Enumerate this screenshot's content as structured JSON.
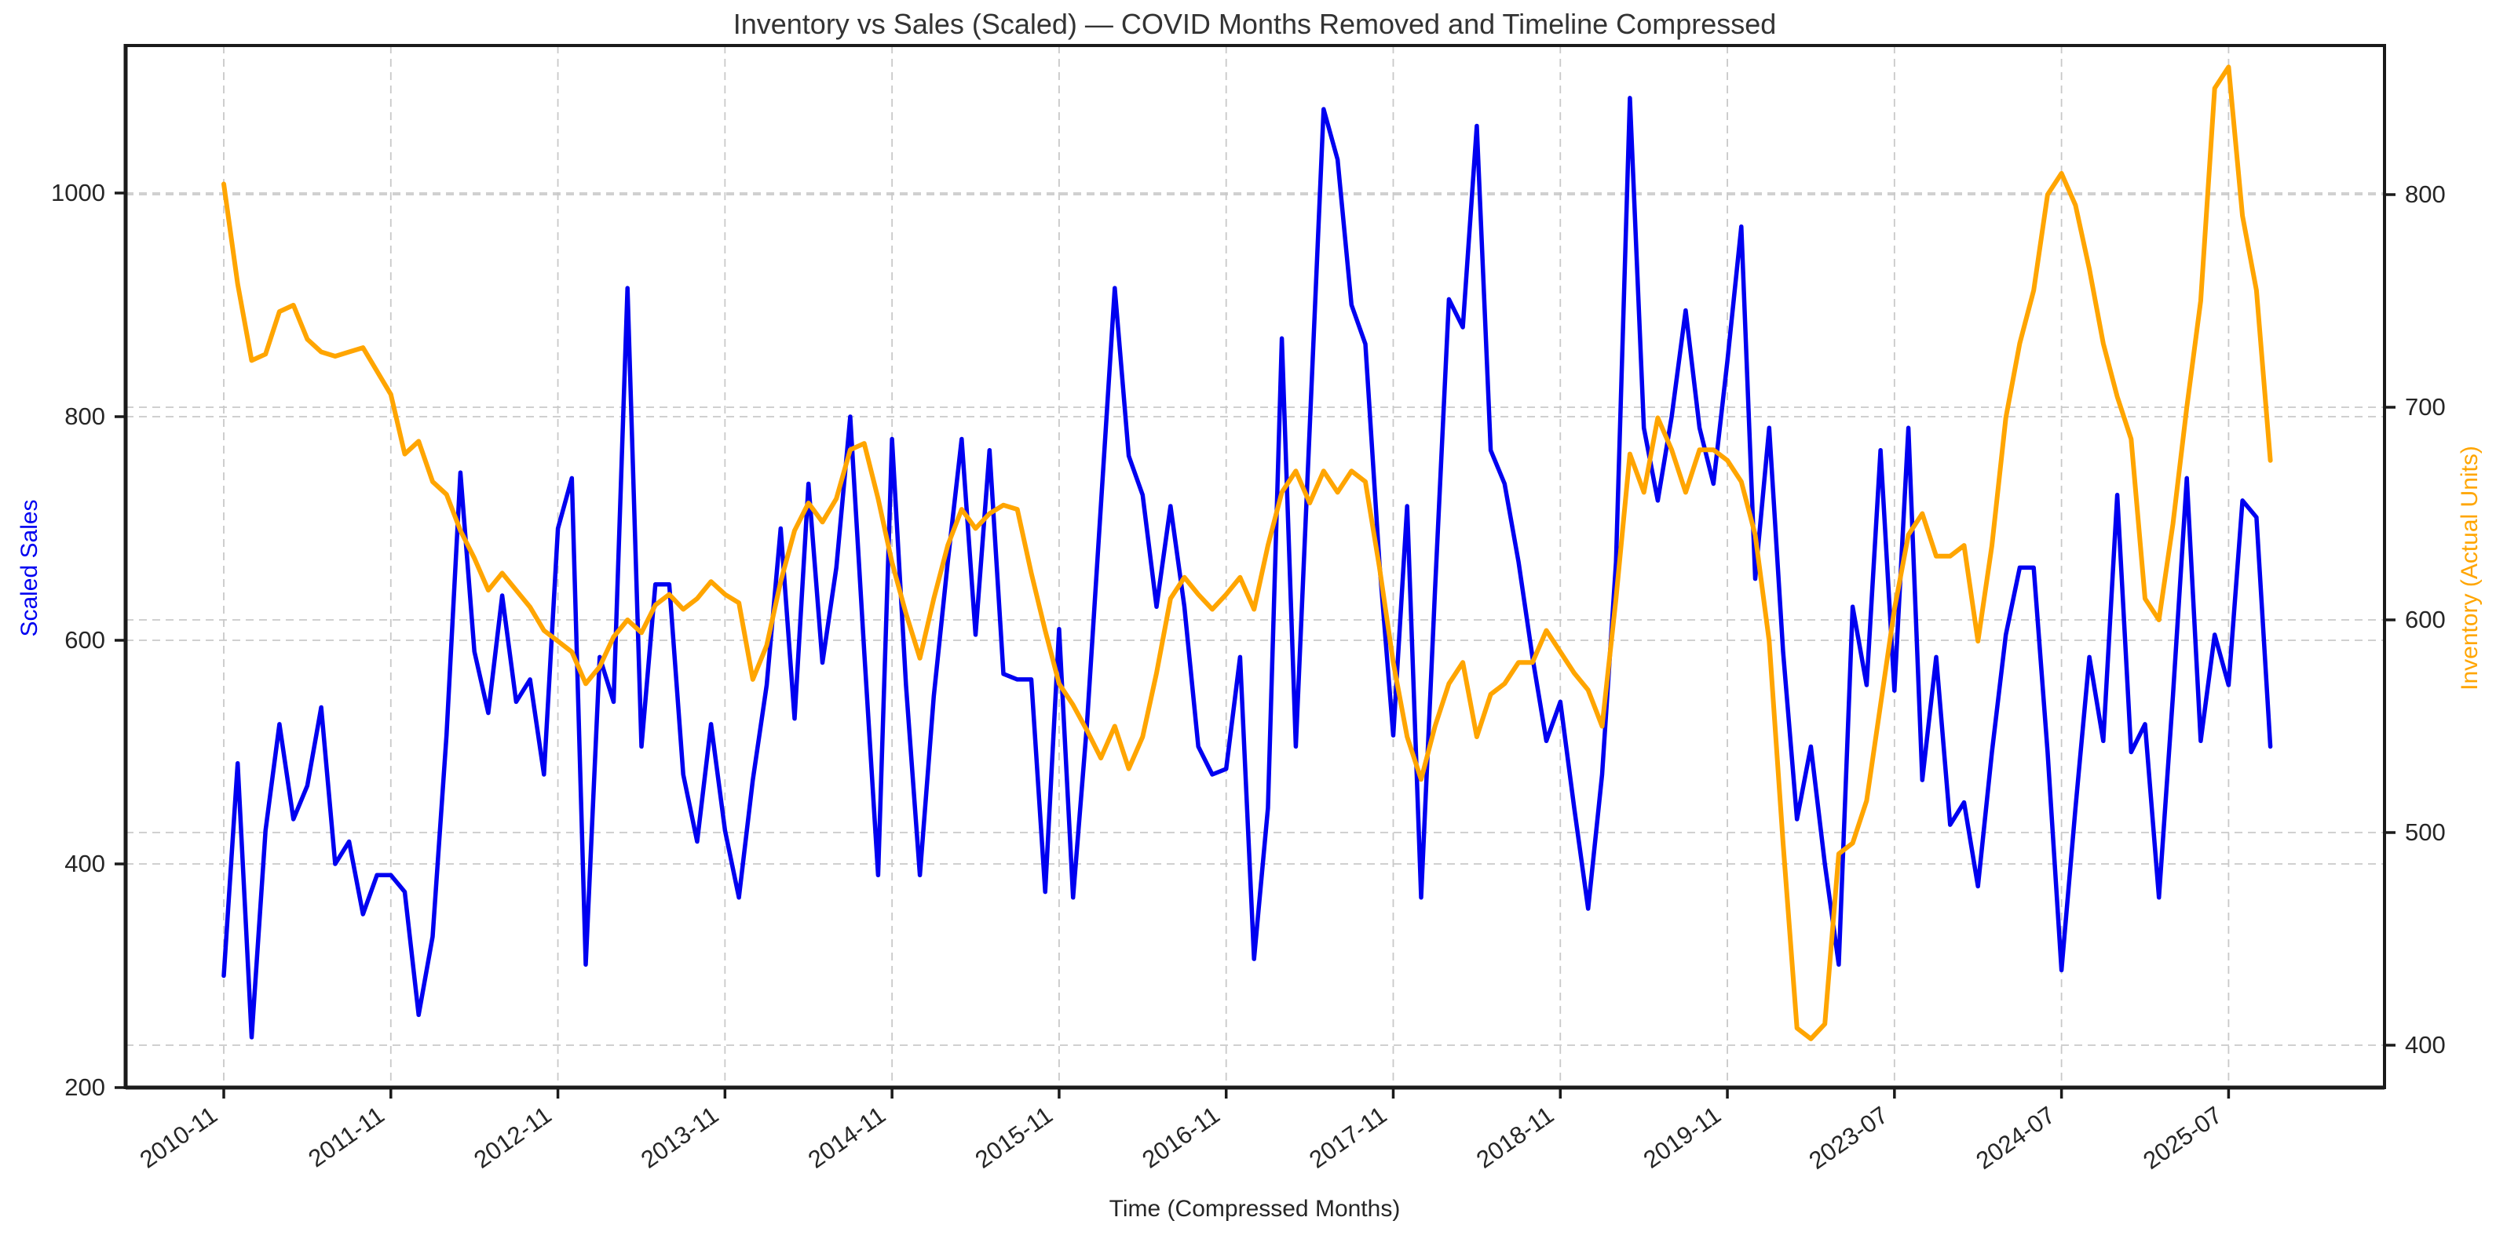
{
  "chart_data": {
    "type": "line",
    "title": "Inventory vs Sales (Scaled) — COVID Months Removed and Timeline Compressed",
    "x_axis": {
      "label": "Time (Compressed Months)",
      "tick_positions": [
        0,
        12,
        24,
        36,
        48,
        60,
        72,
        84,
        96,
        108,
        120,
        132,
        144
      ],
      "tick_labels": [
        "2010-11",
        "2011-11",
        "2012-11",
        "2013-11",
        "2014-11",
        "2015-11",
        "2016-11",
        "2017-11",
        "2018-11",
        "2019-11",
        "2023-07",
        "2024-07",
        "2025-07"
      ],
      "note": "x is compressed month index; COVID months removed",
      "grid": true
    },
    "y_axis_left": {
      "label": "Scaled Sales",
      "ticks": [
        200,
        400,
        600,
        800,
        1000
      ],
      "range": [
        200,
        1127
      ],
      "color": "#0000f0",
      "grid": true
    },
    "y_axis_right": {
      "label": "Inventory (Actual Units)",
      "ticks": [
        400,
        500,
        600,
        700,
        800
      ],
      "range": [
        380,
        868
      ],
      "color": "#ffa500",
      "grid": true
    },
    "series": [
      {
        "name": "Scaled Sales",
        "axis": "left",
        "color": "#0000f0",
        "line_width": 5.5,
        "values": [
          300,
          490,
          245,
          430,
          525,
          440,
          470,
          540,
          400,
          420,
          355,
          390,
          390,
          375,
          265,
          335,
          515,
          750,
          590,
          535,
          640,
          545,
          565,
          480,
          700,
          745,
          310,
          585,
          545,
          915,
          505,
          650,
          650,
          480,
          420,
          525,
          430,
          370,
          475,
          560,
          700,
          530,
          740,
          580,
          665,
          800,
          590,
          390,
          780,
          560,
          390,
          550,
          670,
          780,
          605,
          770,
          570,
          565,
          565,
          375,
          610,
          370,
          525,
          720,
          915,
          765,
          730,
          630,
          720,
          630,
          505,
          480,
          485,
          585,
          315,
          450,
          870,
          505,
          790,
          1075,
          1030,
          900,
          865,
          670,
          515,
          720,
          370,
          645,
          905,
          880,
          1060,
          770,
          740,
          670,
          585,
          510,
          545,
          450,
          360,
          480,
          670,
          1085,
          790,
          725,
          800,
          895,
          790,
          740,
          850,
          970,
          655,
          790,
          590,
          440,
          505,
          400,
          310,
          630,
          560,
          770,
          555,
          790,
          475,
          585,
          435,
          455,
          380,
          500,
          605,
          665,
          665,
          500,
          305,
          450,
          585,
          510,
          730,
          500,
          525,
          370,
          550,
          745,
          510,
          605,
          560,
          725,
          710,
          505
        ]
      },
      {
        "name": "Inventory (Actual Units)",
        "axis": "right",
        "color": "#ffa500",
        "line_width": 6,
        "values": [
          805,
          758,
          722,
          725,
          745,
          748,
          732,
          726,
          724,
          726,
          728,
          717,
          706,
          678,
          684,
          665,
          659,
          642,
          629,
          614,
          622,
          614,
          606,
          595,
          590,
          585,
          570,
          578,
          592,
          600,
          594,
          607,
          612,
          605,
          610,
          618,
          612,
          608,
          572,
          588,
          618,
          642,
          655,
          646,
          657,
          680,
          683,
          657,
          627,
          603,
          582,
          610,
          635,
          652,
          643,
          650,
          654,
          652,
          622,
          595,
          570,
          560,
          548,
          535,
          550,
          530,
          545,
          575,
          610,
          620,
          612,
          605,
          612,
          620,
          605,
          635,
          660,
          670,
          655,
          670,
          660,
          670,
          665,
          625,
          580,
          545,
          525,
          550,
          570,
          580,
          545,
          565,
          570,
          580,
          580,
          595,
          585,
          575,
          567,
          550,
          610,
          678,
          660,
          695,
          680,
          660,
          680,
          680,
          675,
          665,
          640,
          590,
          495,
          408,
          403,
          410,
          490,
          495,
          515,
          560,
          605,
          640,
          650,
          630,
          630,
          635,
          590,
          635,
          695,
          730,
          755,
          800,
          810,
          795,
          765,
          730,
          705,
          685,
          610,
          600,
          645,
          700,
          750,
          850,
          860,
          790,
          755,
          675
        ]
      }
    ],
    "style": {
      "grid_color": "#c9c9c9",
      "grid_dash": "10 7",
      "spine_color": "#1a1a1a",
      "tick_text_color": "#262626",
      "background": "#ffffff",
      "x_tick_rotation_deg": -35
    }
  }
}
